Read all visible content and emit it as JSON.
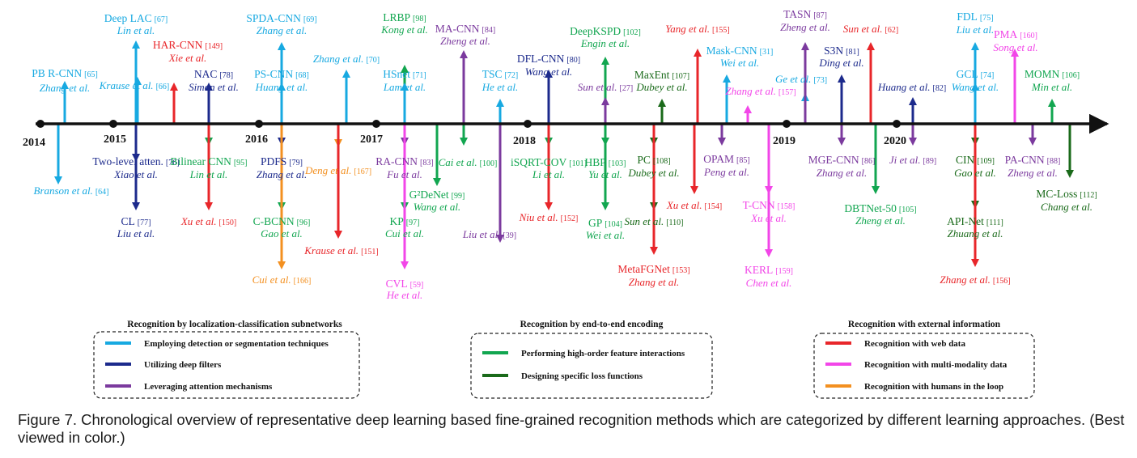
{
  "colors": {
    "axis": "#111111",
    "detection": "#17a9e1",
    "deep_filters": "#1c2a8c",
    "attention": "#7b3a9e",
    "high_order": "#12a650",
    "loss": "#1a6a1a",
    "web": "#e8262a",
    "multimodal": "#f246e8",
    "humans": "#f39020"
  },
  "years": [
    "2014",
    "2015",
    "2016",
    "2017",
    "2018",
    "2019",
    "2020"
  ],
  "methods": [
    {
      "id": "pbrcnn",
      "name": "PB R-CNN",
      "ref": "[65]",
      "author": "Zhang et al.",
      "cat": "detection"
    },
    {
      "id": "branson",
      "name": "",
      "ref": "[64]",
      "author": "Branson et al.",
      "cat": "detection"
    },
    {
      "id": "deeplac",
      "name": "Deep LAC",
      "ref": "[67]",
      "author": "Lin et al.",
      "cat": "detection"
    },
    {
      "id": "krause66",
      "name": "",
      "ref": "[66]",
      "author": "Krause et al.",
      "cat": "detection"
    },
    {
      "id": "twolevel",
      "name": "Two-level atten.",
      "ref": "[76]",
      "author": "Xiao et al.",
      "cat": "deep_filters"
    },
    {
      "id": "cl",
      "name": "CL",
      "ref": "[77]",
      "author": "Liu et al.",
      "cat": "deep_filters"
    },
    {
      "id": "harcnn",
      "name": "HAR-CNN",
      "ref": "[149]",
      "author": "Xie et al.",
      "cat": "web"
    },
    {
      "id": "nac",
      "name": "NAC",
      "ref": "[78]",
      "author": "Simon et al.",
      "cat": "deep_filters"
    },
    {
      "id": "bilinear",
      "name": "Bilinear CNN",
      "ref": "[95]",
      "author": "Lin et al.",
      "cat": "high_order"
    },
    {
      "id": "xu150",
      "name": "",
      "ref": "[150]",
      "author": "Xu et al.",
      "cat": "web"
    },
    {
      "id": "spdacnn",
      "name": "SPDA-CNN",
      "ref": "[69]",
      "author": "Zhang et al.",
      "cat": "detection"
    },
    {
      "id": "pscnn",
      "name": "PS-CNN",
      "ref": "[68]",
      "author": "Huang et al.",
      "cat": "detection"
    },
    {
      "id": "pdfs",
      "name": "PDFS",
      "ref": "[79]",
      "author": "Zhang et al.",
      "cat": "deep_filters"
    },
    {
      "id": "cbcnn",
      "name": "C-BCNN",
      "ref": "[96]",
      "author": "Gao et al.",
      "cat": "high_order"
    },
    {
      "id": "cui166",
      "name": "",
      "ref": "[166]",
      "author": "Cui et al.",
      "cat": "humans"
    },
    {
      "id": "zhang70",
      "name": "",
      "ref": "[70]",
      "author": "Zhang et al.",
      "cat": "detection"
    },
    {
      "id": "deng167",
      "name": "",
      "ref": "[167]",
      "author": "Deng et al.",
      "cat": "humans"
    },
    {
      "id": "krause151",
      "name": "",
      "ref": "[151]",
      "author": "Krause et al.",
      "cat": "web"
    },
    {
      "id": "lrbp",
      "name": "LRBP",
      "ref": "[98]",
      "author": "Kong et al.",
      "cat": "high_order"
    },
    {
      "id": "hsnet",
      "name": "HSnet",
      "ref": "[71]",
      "author": "Lam et al.",
      "cat": "detection"
    },
    {
      "id": "racnn",
      "name": "RA-CNN",
      "ref": "[83]",
      "author": "Fu et al.",
      "cat": "attention"
    },
    {
      "id": "kp",
      "name": "KP",
      "ref": "[97]",
      "author": "Cui et al.",
      "cat": "high_order"
    },
    {
      "id": "cvl",
      "name": "CVL",
      "ref": "[59]",
      "author": "He et al.",
      "cat": "multimodal"
    },
    {
      "id": "g2denet",
      "name": "G²DeNet",
      "ref": "[99]",
      "author": "Wang et al.",
      "cat": "high_order"
    },
    {
      "id": "macnn",
      "name": "MA-CNN",
      "ref": "[84]",
      "author": "Zheng et al.",
      "cat": "attention"
    },
    {
      "id": "cai100",
      "name": "",
      "ref": "[100]",
      "author": "Cai et al.",
      "cat": "high_order"
    },
    {
      "id": "tsc",
      "name": "TSC",
      "ref": "[72]",
      "author": "He et al.",
      "cat": "detection"
    },
    {
      "id": "liu39",
      "name": "",
      "ref": "[39]",
      "author": "Liu et al.",
      "cat": "attention"
    },
    {
      "id": "dflcnn",
      "name": "DFL-CNN",
      "ref": "[80]",
      "author": "Wang et al.",
      "cat": "deep_filters"
    },
    {
      "id": "isqrt",
      "name": "iSQRT-COV",
      "ref": "[101]",
      "author": "Li et al.",
      "cat": "high_order"
    },
    {
      "id": "niu152",
      "name": "",
      "ref": "[152]",
      "author": "Niu et al.",
      "cat": "web"
    },
    {
      "id": "deepkspd",
      "name": "DeepKSPD",
      "ref": "[102]",
      "author": "Engin et al.",
      "cat": "high_order"
    },
    {
      "id": "sun27",
      "name": "",
      "ref": "[27]",
      "author": "Sun et al.",
      "cat": "attention"
    },
    {
      "id": "hbp",
      "name": "HBP",
      "ref": "[103]",
      "author": "Yu et al.",
      "cat": "high_order"
    },
    {
      "id": "gp",
      "name": "GP",
      "ref": "[104]",
      "author": "Wei et al.",
      "cat": "high_order"
    },
    {
      "id": "maxent",
      "name": "MaxEnt",
      "ref": "[107]",
      "author": "Dubey et al.",
      "cat": "loss"
    },
    {
      "id": "pc",
      "name": "PC",
      "ref": "[108]",
      "author": "Dubey et al.",
      "cat": "loss"
    },
    {
      "id": "sun110",
      "name": "",
      "ref": "[110]",
      "author": "Sun et al.",
      "cat": "loss"
    },
    {
      "id": "metafgnet",
      "name": "MetaFGNet",
      "ref": "[153]",
      "author": "Zhang et al.",
      "cat": "web"
    },
    {
      "id": "yang155",
      "name": "",
      "ref": "[155]",
      "author": "Yang et al.",
      "cat": "web"
    },
    {
      "id": "xu154",
      "name": "",
      "ref": "[154]",
      "author": "Xu et al.",
      "cat": "web"
    },
    {
      "id": "maskcnn",
      "name": "Mask-CNN",
      "ref": "[31]",
      "author": "Wei et al.",
      "cat": "detection"
    },
    {
      "id": "opam",
      "name": "OPAM",
      "ref": "[85]",
      "author": "Peng et al.",
      "cat": "attention"
    },
    {
      "id": "zhang157",
      "name": "",
      "ref": "[157]",
      "author": "Zhang et al.",
      "cat": "multimodal"
    },
    {
      "id": "tcnn",
      "name": "T-CNN",
      "ref": "[158]",
      "author": "Xu et al.",
      "cat": "multimodal"
    },
    {
      "id": "kerl",
      "name": "KERL",
      "ref": "[159]",
      "author": "Chen et al.",
      "cat": "multimodal"
    },
    {
      "id": "ge73",
      "name": "",
      "ref": "[73]",
      "author": "Ge et al.",
      "cat": "detection"
    },
    {
      "id": "tasn",
      "name": "TASN",
      "ref": "[87]",
      "author": "Zheng et al.",
      "cat": "attention"
    },
    {
      "id": "s3n",
      "name": "S3N",
      "ref": "[81]",
      "author": "Ding et al.",
      "cat": "deep_filters"
    },
    {
      "id": "mgecnn",
      "name": "MGE-CNN",
      "ref": "[86]",
      "author": "Zhang et al.",
      "cat": "attention"
    },
    {
      "id": "sun62",
      "name": "",
      "ref": "[62]",
      "author": "Sun et al.",
      "cat": "web"
    },
    {
      "id": "dbtnet",
      "name": "DBTNet-50",
      "ref": "[105]",
      "author": "Zheng et al.",
      "cat": "high_order"
    },
    {
      "id": "huang82",
      "name": "",
      "ref": "[82]",
      "author": "Huang et al.",
      "cat": "deep_filters"
    },
    {
      "id": "ji89",
      "name": "",
      "ref": "[89]",
      "author": "Ji et al.",
      "cat": "attention"
    },
    {
      "id": "fdl",
      "name": "FDL",
      "ref": "[75]",
      "author": "Liu et al.",
      "cat": "detection"
    },
    {
      "id": "gcl",
      "name": "GCL",
      "ref": "[74]",
      "author": "Wang et al.",
      "cat": "detection"
    },
    {
      "id": "cin",
      "name": "CIN",
      "ref": "[109]",
      "author": "Gao et al.",
      "cat": "loss"
    },
    {
      "id": "apinet",
      "name": "API-Net",
      "ref": "[111]",
      "author": "Zhuang et al.",
      "cat": "loss"
    },
    {
      "id": "zhang156",
      "name": "",
      "ref": "[156]",
      "author": "Zhang et al.",
      "cat": "web"
    },
    {
      "id": "pma",
      "name": "PMA",
      "ref": "[160]",
      "author": "Song et al.",
      "cat": "multimodal"
    },
    {
      "id": "pacnn",
      "name": "PA-CNN",
      "ref": "[88]",
      "author": "Zheng et al.",
      "cat": "attention"
    },
    {
      "id": "momn",
      "name": "MOMN",
      "ref": "[106]",
      "author": "Min et al.",
      "cat": "high_order"
    },
    {
      "id": "mcloss",
      "name": "MC-Loss",
      "ref": "[112]",
      "author": "Chang et al.",
      "cat": "loss"
    }
  ],
  "legend": {
    "groups": [
      {
        "title": "Recognition by localization-classification subnetworks",
        "items": [
          {
            "label": "Employing detection or segmentation techniques",
            "cat": "detection"
          },
          {
            "label": "Utilizing deep filters",
            "cat": "deep_filters"
          },
          {
            "label": "Leveraging attention mechanisms",
            "cat": "attention"
          }
        ]
      },
      {
        "title": "Recognition by end-to-end encoding",
        "items": [
          {
            "label": "Performing  high-order feature interactions",
            "cat": "high_order"
          },
          {
            "label": "Designing specific loss functions",
            "cat": "loss"
          }
        ]
      },
      {
        "title": "Recognition with external information",
        "items": [
          {
            "label": "Recognition with web data",
            "cat": "web"
          },
          {
            "label": "Recognition with multi-modality data",
            "cat": "multimodal"
          },
          {
            "label": "Recognition with humans in the loop",
            "cat": "humans"
          }
        ]
      }
    ]
  },
  "caption": "Figure 7. Chronological overview of representative deep learning based fine-grained recognition methods which are categorized by different learning approaches. (Best viewed in color.)"
}
